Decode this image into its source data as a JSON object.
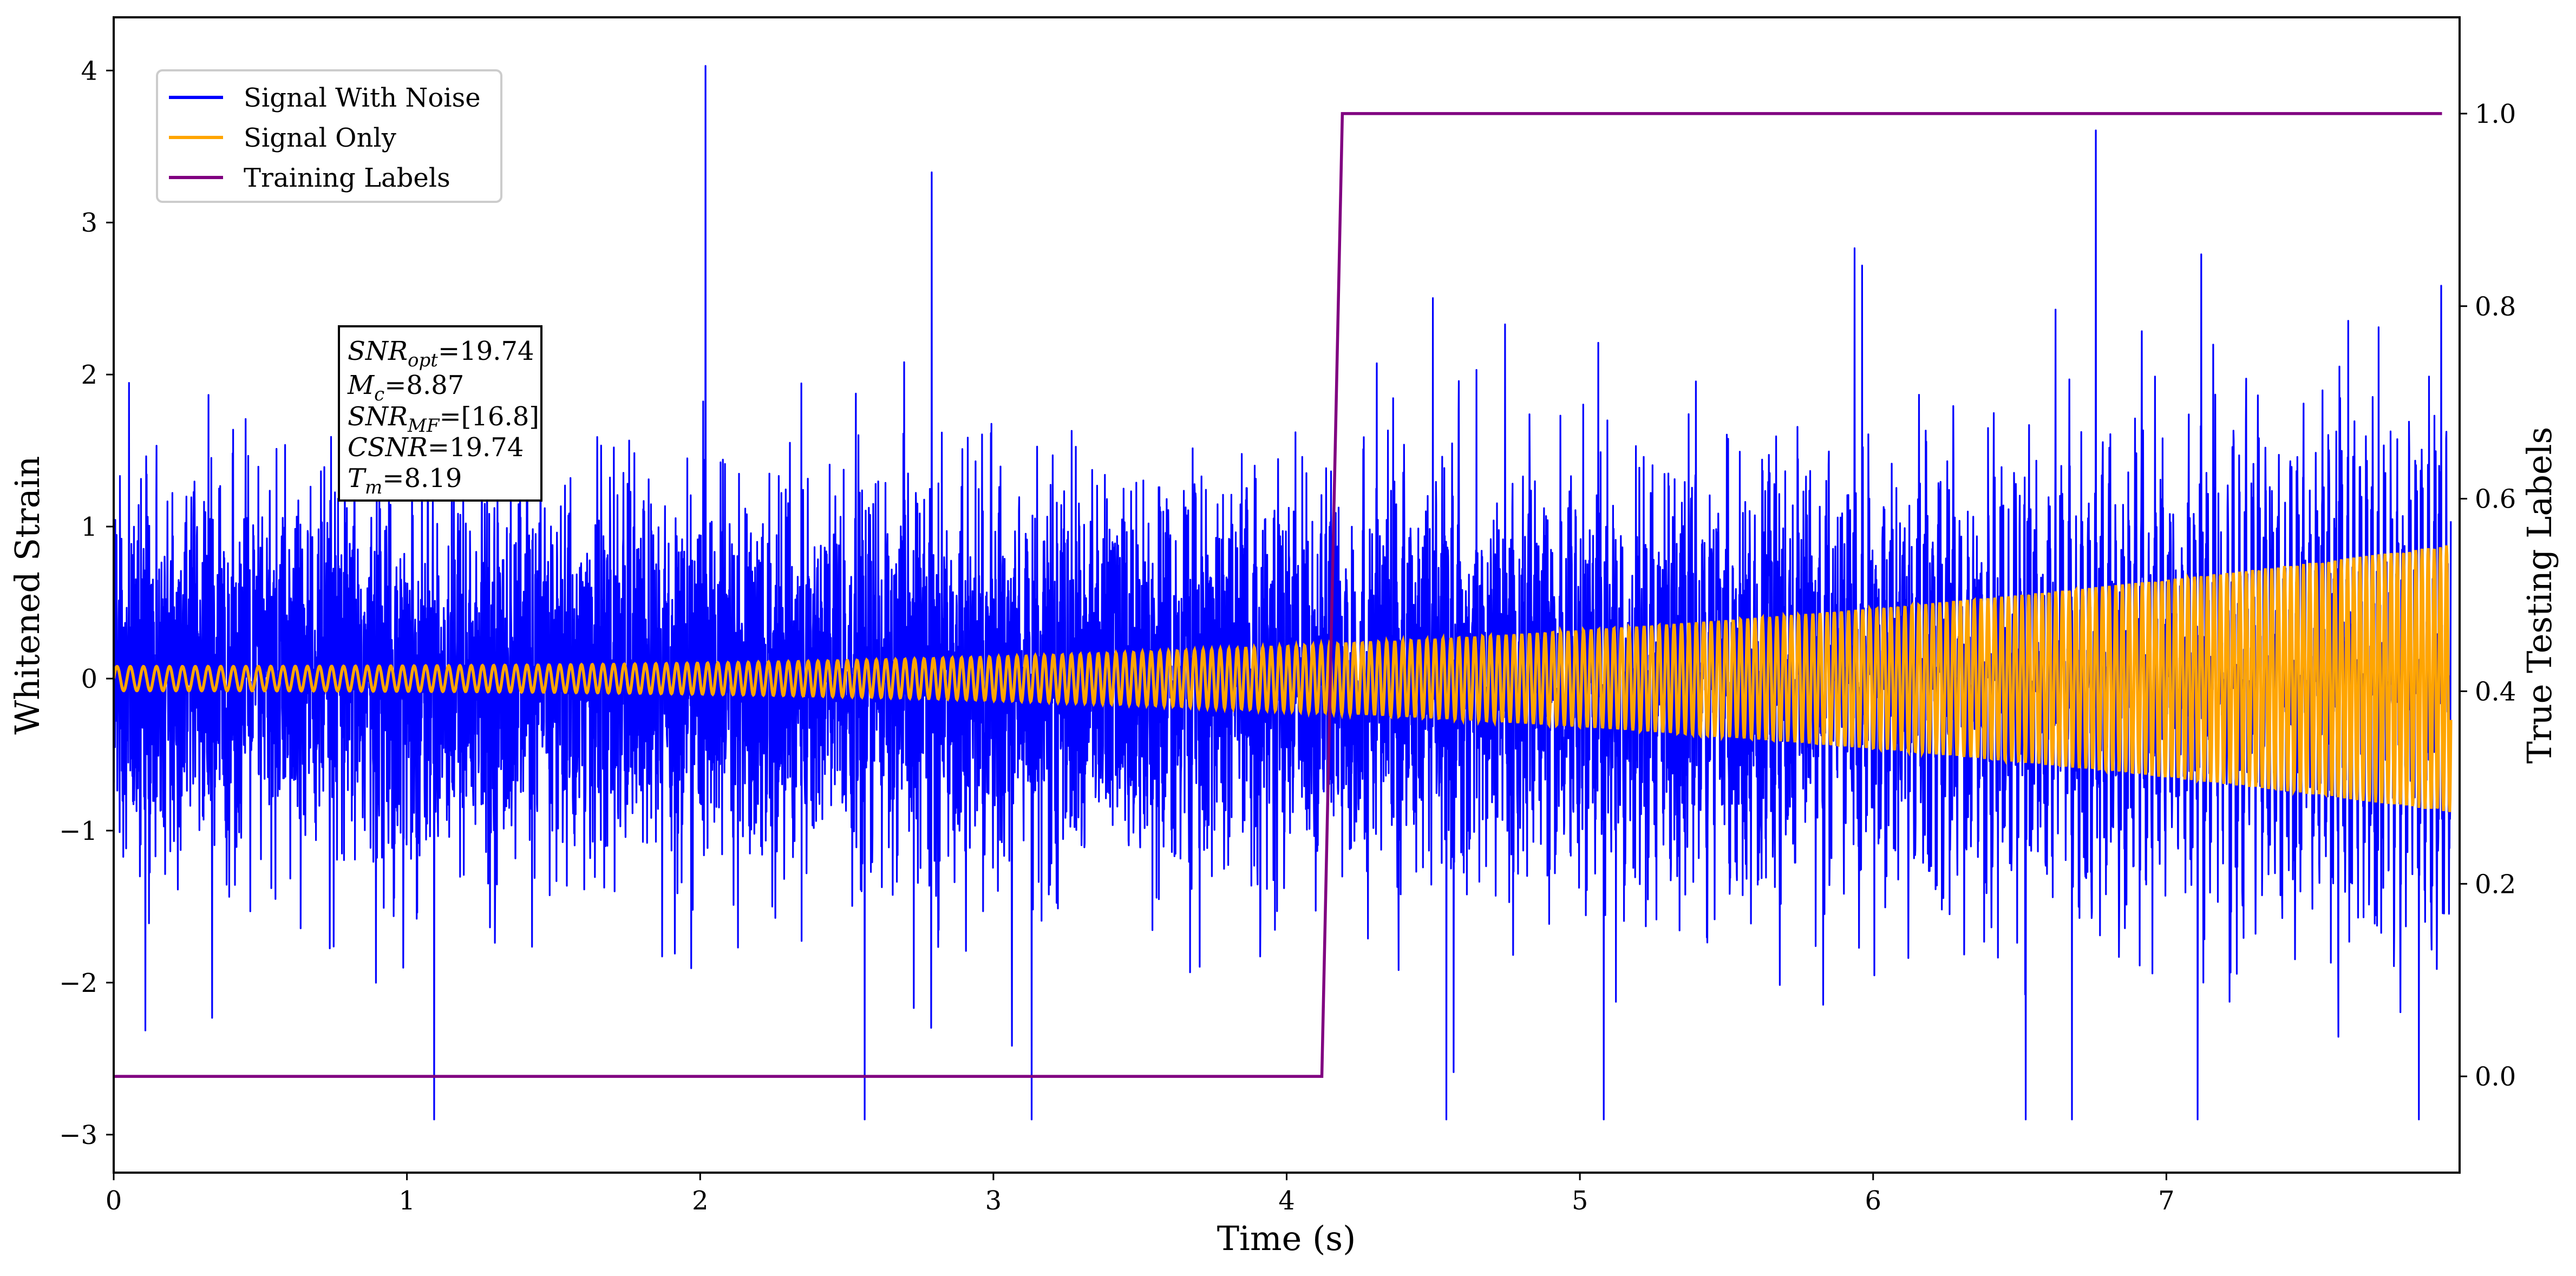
{
  "chart_data": {
    "type": "line",
    "xlabel": "Time (s)",
    "ylabel_left": "Whitened Strain",
    "ylabel_right": "True Testing Labels",
    "xlim": [
      0,
      8.0
    ],
    "ylim_left": [
      -3.25,
      4.35
    ],
    "ylim_right": [
      -0.1,
      1.1
    ],
    "x_ticks": [
      0,
      1,
      2,
      3,
      4,
      5,
      6,
      7
    ],
    "x_tick_labels": [
      "0",
      "1",
      "2",
      "3",
      "4",
      "5",
      "6",
      "7"
    ],
    "y_left_ticks": [
      -3,
      -2,
      -1,
      0,
      1,
      2,
      3,
      4
    ],
    "y_left_tick_labels": [
      "−3",
      "−2",
      "−1",
      "0",
      "1",
      "2",
      "3",
      "4"
    ],
    "y_right_ticks": [
      0.0,
      0.2,
      0.4,
      0.6,
      0.8,
      1.0
    ],
    "y_right_tick_labels": [
      "0.0",
      "0.2",
      "0.4",
      "0.6",
      "0.8",
      "1.0"
    ],
    "grid": false,
    "legend_position": "upper-left",
    "legend": [
      {
        "label": "Signal With Noise",
        "color": "#0000ff"
      },
      {
        "label": "Signal Only",
        "color": "#ffa500"
      },
      {
        "label": "Training Labels",
        "color": "#800080"
      }
    ],
    "series": [
      {
        "name": "Signal With Noise",
        "axis": "left",
        "color": "#0000ff",
        "description_values": {
          "sigma": 0.6,
          "min": -2.9,
          "max": 4.03
        }
      },
      {
        "name": "Signal Only",
        "axis": "left",
        "color": "#ffa500",
        "amplitude_start": 0.08,
        "amplitude_end": 0.88,
        "frequency_start_hz": 22,
        "frequency_end_hz": 48
      },
      {
        "name": "Training Labels",
        "axis": "right",
        "color": "#800080",
        "x": [
          0,
          4.12,
          4.19,
          7.94
        ],
        "y": [
          0.0,
          0.0,
          1.0,
          1.0
        ]
      }
    ],
    "annotation": {
      "lines": [
        {
          "base": "SNR",
          "sub": "opt",
          "value": "=19.74"
        },
        {
          "base": "M",
          "sub": "c",
          "value": "=8.87"
        },
        {
          "base": "SNR",
          "sub": "MF",
          "value": "=[16.8]"
        },
        {
          "base": "CSNR",
          "sub": "",
          "value": "=19.74"
        },
        {
          "base": "T",
          "sub": "m",
          "value": "=8.19"
        }
      ]
    }
  }
}
